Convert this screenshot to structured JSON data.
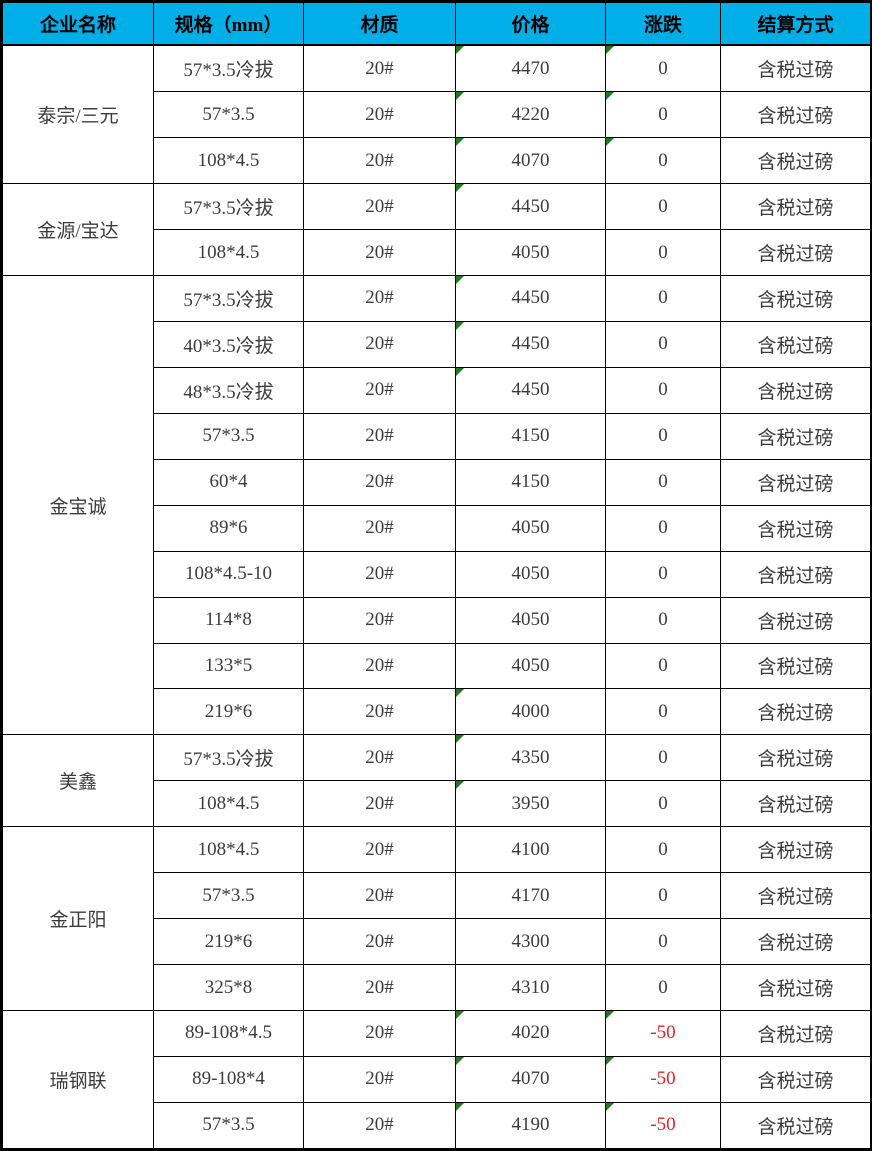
{
  "header": {
    "columns": [
      "企业名称",
      "规格（mm）",
      "材质",
      "价格",
      "涨跌",
      "结算方式"
    ]
  },
  "colors": {
    "header_bg": "#00AEE8",
    "cell_text": "#3C3C3C",
    "negative_change": "#E32222",
    "flag_triangle_green": "#1E7B1E",
    "border": "#000000"
  },
  "groups": [
    {
      "company": "泰宗/三元",
      "rows": [
        {
          "spec": "57*3.5冷拔",
          "material": "20#",
          "price": "4470",
          "change": "0",
          "settlement": "含税过磅",
          "price_flag": true,
          "change_flag": true
        },
        {
          "spec": "57*3.5",
          "material": "20#",
          "price": "4220",
          "change": "0",
          "settlement": "含税过磅",
          "price_flag": true,
          "change_flag": true
        },
        {
          "spec": "108*4.5",
          "material": "20#",
          "price": "4070",
          "change": "0",
          "settlement": "含税过磅",
          "price_flag": true,
          "change_flag": true
        }
      ]
    },
    {
      "company": "金源/宝达",
      "rows": [
        {
          "spec": "57*3.5冷拔",
          "material": "20#",
          "price": "4450",
          "change": "0",
          "settlement": "含税过磅",
          "price_flag": true,
          "change_flag": false
        },
        {
          "spec": "108*4.5",
          "material": "20#",
          "price": "4050",
          "change": "0",
          "settlement": "含税过磅",
          "price_flag": false,
          "change_flag": false
        }
      ]
    },
    {
      "company": "金宝诚",
      "rows": [
        {
          "spec": "57*3.5冷拔",
          "material": "20#",
          "price": "4450",
          "change": "0",
          "settlement": "含税过磅",
          "price_flag": true,
          "change_flag": false
        },
        {
          "spec": "40*3.5冷拔",
          "material": "20#",
          "price": "4450",
          "change": "0",
          "settlement": "含税过磅",
          "price_flag": true,
          "change_flag": false
        },
        {
          "spec": "48*3.5冷拔",
          "material": "20#",
          "price": "4450",
          "change": "0",
          "settlement": "含税过磅",
          "price_flag": true,
          "change_flag": false
        },
        {
          "spec": "57*3.5",
          "material": "20#",
          "price": "4150",
          "change": "0",
          "settlement": "含税过磅",
          "price_flag": false,
          "change_flag": false
        },
        {
          "spec": "60*4",
          "material": "20#",
          "price": "4150",
          "change": "0",
          "settlement": "含税过磅",
          "price_flag": false,
          "change_flag": false
        },
        {
          "spec": "89*6",
          "material": "20#",
          "price": "4050",
          "change": "0",
          "settlement": "含税过磅",
          "price_flag": false,
          "change_flag": false
        },
        {
          "spec": "108*4.5-10",
          "material": "20#",
          "price": "4050",
          "change": "0",
          "settlement": "含税过磅",
          "price_flag": false,
          "change_flag": false
        },
        {
          "spec": "114*8",
          "material": "20#",
          "price": "4050",
          "change": "0",
          "settlement": "含税过磅",
          "price_flag": false,
          "change_flag": false
        },
        {
          "spec": "133*5",
          "material": "20#",
          "price": "4050",
          "change": "0",
          "settlement": "含税过磅",
          "price_flag": false,
          "change_flag": false
        },
        {
          "spec": "219*6",
          "material": "20#",
          "price": "4000",
          "change": "0",
          "settlement": "含税过磅",
          "price_flag": true,
          "change_flag": false
        }
      ]
    },
    {
      "company": "美鑫",
      "rows": [
        {
          "spec": "57*3.5冷拔",
          "material": "20#",
          "price": "4350",
          "change": "0",
          "settlement": "含税过磅",
          "price_flag": true,
          "change_flag": false
        },
        {
          "spec": "108*4.5",
          "material": "20#",
          "price": "3950",
          "change": "0",
          "settlement": "含税过磅",
          "price_flag": true,
          "change_flag": false
        }
      ]
    },
    {
      "company": "金正阳",
      "rows": [
        {
          "spec": "108*4.5",
          "material": "20#",
          "price": "4100",
          "change": "0",
          "settlement": "含税过磅",
          "price_flag": false,
          "change_flag": false
        },
        {
          "spec": "57*3.5",
          "material": "20#",
          "price": "4170",
          "change": "0",
          "settlement": "含税过磅",
          "price_flag": false,
          "change_flag": false
        },
        {
          "spec": "219*6",
          "material": "20#",
          "price": "4300",
          "change": "0",
          "settlement": "含税过磅",
          "price_flag": false,
          "change_flag": false
        },
        {
          "spec": "325*8",
          "material": "20#",
          "price": "4310",
          "change": "0",
          "settlement": "含税过磅",
          "price_flag": false,
          "change_flag": false
        }
      ]
    },
    {
      "company": "瑞钢联",
      "rows": [
        {
          "spec": "89-108*4.5",
          "material": "20#",
          "price": "4020",
          "change": "-50",
          "settlement": "含税过磅",
          "price_flag": true,
          "change_flag": true
        },
        {
          "spec": "89-108*4",
          "material": "20#",
          "price": "4070",
          "change": "-50",
          "settlement": "含税过磅",
          "price_flag": true,
          "change_flag": true
        },
        {
          "spec": "57*3.5",
          "material": "20#",
          "price": "4190",
          "change": "-50",
          "settlement": "含税过磅",
          "price_flag": true,
          "change_flag": true
        }
      ]
    }
  ]
}
